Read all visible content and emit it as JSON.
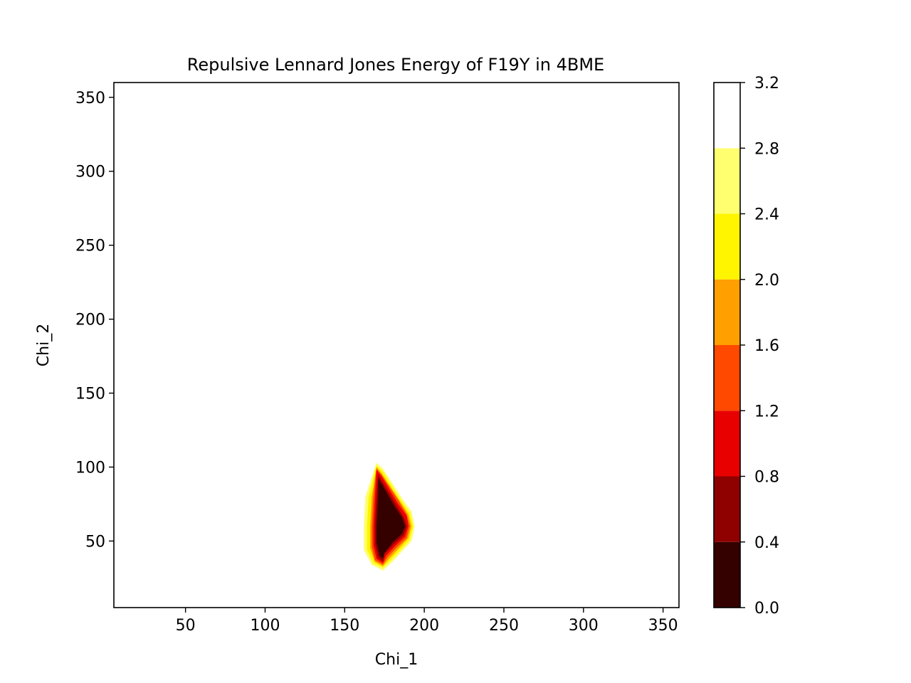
{
  "chart_data": {
    "type": "contour",
    "title": "Repulsive Lennard Jones Energy of F19Y in 4BME",
    "xlabel": "Chi_1",
    "ylabel": "Chi_2",
    "xlim": [
      5,
      360
    ],
    "ylim": [
      5,
      360
    ],
    "xticks": [
      50,
      100,
      150,
      200,
      250,
      300,
      350
    ],
    "yticks": [
      50,
      100,
      150,
      200,
      250,
      300,
      350
    ],
    "grid": false,
    "colormap": "hot",
    "colorbar": {
      "levels": [
        0.0,
        0.4,
        0.8,
        1.2,
        1.6,
        2.0,
        2.4,
        2.8,
        3.2
      ],
      "tick_labels": [
        "0.0",
        "0.4",
        "0.8",
        "1.2",
        "1.6",
        "2.0",
        "2.4",
        "2.8",
        "3.2"
      ],
      "colors": [
        "#350000",
        "#8f0000",
        "#e80000",
        "#ff4800",
        "#ff9f00",
        "#fff500",
        "#ffff70",
        "#ffffff"
      ]
    },
    "background_level": "2.8-3.2",
    "contour_regions": [
      {
        "band": "2.4-2.8",
        "polygon": [
          [
            170,
            103
          ],
          [
            174,
            99
          ],
          [
            186,
            79
          ],
          [
            192,
            70
          ],
          [
            194,
            60
          ],
          [
            192,
            50
          ],
          [
            186,
            43
          ],
          [
            180,
            36
          ],
          [
            174,
            30
          ],
          [
            167,
            34
          ],
          [
            162,
            44
          ],
          [
            162,
            60
          ],
          [
            163,
            80
          ]
        ]
      },
      {
        "band": "2.0-2.4",
        "polygon": [
          [
            170,
            101
          ],
          [
            174,
            97
          ],
          [
            185,
            78
          ],
          [
            191,
            69
          ],
          [
            193,
            60
          ],
          [
            191,
            51
          ],
          [
            185,
            44
          ],
          [
            179,
            37
          ],
          [
            174,
            32
          ],
          [
            168,
            35
          ],
          [
            164,
            44
          ],
          [
            164,
            60
          ],
          [
            165,
            80
          ]
        ]
      },
      {
        "band": "1.6-2.0",
        "polygon": [
          [
            170,
            100
          ],
          [
            173,
            96
          ],
          [
            184,
            78
          ],
          [
            190,
            68
          ],
          [
            192,
            60
          ],
          [
            190,
            52
          ],
          [
            184,
            45
          ],
          [
            178,
            38
          ],
          [
            174,
            33
          ],
          [
            169,
            36
          ],
          [
            166,
            45
          ],
          [
            166,
            60
          ],
          [
            167,
            80
          ]
        ]
      },
      {
        "band": "1.2-1.6",
        "polygon": [
          [
            170,
            99
          ],
          [
            173,
            95
          ],
          [
            184,
            77
          ],
          [
            189,
            68
          ],
          [
            191,
            60
          ],
          [
            189,
            52
          ],
          [
            183,
            46
          ],
          [
            177,
            39
          ],
          [
            174,
            34
          ],
          [
            169,
            37
          ],
          [
            167,
            46
          ],
          [
            167,
            60
          ],
          [
            168,
            80
          ]
        ]
      },
      {
        "band": "0.8-1.2",
        "polygon": [
          [
            170,
            98
          ],
          [
            173,
            94
          ],
          [
            183,
            76
          ],
          [
            189,
            67
          ],
          [
            190,
            60
          ],
          [
            188,
            53
          ],
          [
            182,
            47
          ],
          [
            176,
            40
          ],
          [
            174,
            35
          ],
          [
            170,
            38
          ],
          [
            168,
            47
          ],
          [
            168,
            60
          ],
          [
            169,
            80
          ]
        ]
      },
      {
        "band": "0.4-0.8",
        "polygon": [
          [
            171,
            95
          ],
          [
            173,
            91
          ],
          [
            182,
            75
          ],
          [
            187,
            66
          ],
          [
            189,
            60
          ],
          [
            187,
            54
          ],
          [
            181,
            48
          ],
          [
            175,
            41
          ],
          [
            174,
            36
          ],
          [
            171,
            39
          ],
          [
            169,
            48
          ],
          [
            169,
            60
          ],
          [
            170,
            80
          ]
        ]
      },
      {
        "band": "0.0-0.4",
        "polygon": [
          [
            171,
            92
          ],
          [
            173,
            89
          ],
          [
            181,
            74
          ],
          [
            186,
            66
          ],
          [
            188,
            60
          ],
          [
            186,
            55
          ],
          [
            180,
            49
          ],
          [
            175,
            42
          ],
          [
            174,
            38
          ],
          [
            172,
            40
          ],
          [
            170,
            49
          ],
          [
            170,
            60
          ],
          [
            171,
            80
          ]
        ]
      }
    ]
  }
}
